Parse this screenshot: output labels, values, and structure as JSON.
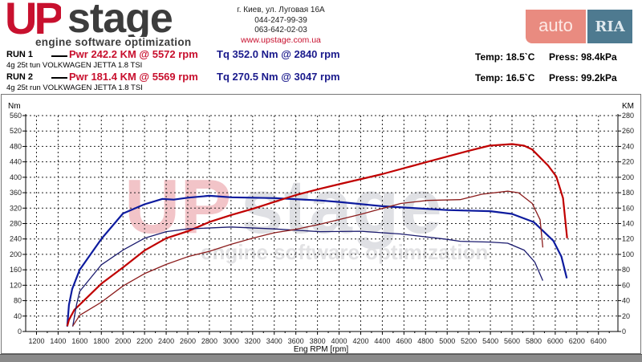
{
  "header": {
    "logo_main": "UPstage",
    "logo_tagline": "engine software optimization",
    "address": "г. Киев, ул. Луговая 16А",
    "phone1": "044-247-99-39",
    "phone2": "063-642-02-03",
    "website": "www.upstage.com.ua",
    "badge_left": "auto",
    "badge_right": "RIA"
  },
  "runs": [
    {
      "label": "RUN 1",
      "pwr": "Pwr  242.2 KM @ 5572 rpm",
      "tq": "Tq 352.0 Nm @ 2840 rpm",
      "car": "4g 25t tun VOLKWAGEN JETTA 1.8 TSI",
      "temp": "Temp: 18.5`C",
      "press": "Press: 98.4kPa"
    },
    {
      "label": "RUN 2",
      "pwr": "Pwr  181.4 KM @ 5569 rpm",
      "tq": "Tq 270.5 Nm @ 3047 rpm",
      "car": "4g 25t run VOLKWAGEN JETTA 1.8 TSI",
      "temp": "Temp: 16.5`C",
      "press": "Press: 99.2kPa"
    }
  ],
  "chart_data": {
    "type": "line",
    "title": "",
    "xlabel": "Eng RPM [rpm]",
    "ylabel": "Nm",
    "y2label": "KM",
    "xlim": [
      1100,
      6580
    ],
    "ylim": [
      0,
      560
    ],
    "y2lim": [
      0,
      280
    ],
    "xticks": [
      1200,
      1400,
      1600,
      1800,
      2000,
      2200,
      2400,
      2600,
      2800,
      3000,
      3200,
      3400,
      3600,
      3800,
      4000,
      4200,
      4400,
      4600,
      4800,
      5000,
      5200,
      5400,
      5600,
      5800,
      6000,
      6200,
      6400
    ],
    "yticks": [
      0,
      40,
      80,
      120,
      160,
      200,
      240,
      280,
      320,
      360,
      400,
      440,
      480,
      520,
      560
    ],
    "y2ticks": [
      0,
      20,
      40,
      60,
      80,
      100,
      120,
      140,
      160,
      180,
      200,
      220,
      240,
      260,
      280
    ],
    "grid": true,
    "watermark": "UPstage engine software optimization",
    "series": [
      {
        "name": "RUN 1 Torque",
        "axis": "left",
        "color": "#0d1b9e",
        "width": 2.2,
        "x": [
          1485,
          1500,
          1530,
          1600,
          1800,
          2000,
          2200,
          2365,
          2470,
          2600,
          2800,
          3000,
          3400,
          3820,
          4000,
          4400,
          5000,
          5400,
          5600,
          5800,
          5983,
          6057,
          6107
        ],
        "y": [
          13,
          69,
          110,
          160,
          240,
          306,
          330,
          344,
          342,
          347,
          352,
          348,
          346,
          340,
          336,
          325,
          315,
          312,
          305,
          284,
          235,
          194,
          138
        ]
      },
      {
        "name": "RUN 1 Power",
        "axis": "right",
        "color": "#c00000",
        "width": 2.2,
        "x": [
          1485,
          1500,
          1550,
          1800,
          2000,
          2200,
          2400,
          2600,
          2800,
          3000,
          3200,
          3400,
          3600,
          3820,
          4000,
          4396,
          4819,
          5191,
          5390,
          5600,
          5712,
          5787,
          5935,
          6010,
          6072,
          6110
        ],
        "y": [
          7,
          15,
          28,
          62,
          83,
          105,
          121,
          130,
          142,
          151,
          159,
          168,
          177,
          185,
          191,
          204,
          220,
          234,
          241,
          243,
          241,
          236,
          215,
          201,
          173,
          121
        ]
      },
      {
        "name": "RUN 2 Torque",
        "axis": "left",
        "color": "#1a1a6e",
        "width": 1.3,
        "x": [
          1535,
          1570,
          1600,
          1800,
          2000,
          2200,
          2400,
          2600,
          3000,
          3400,
          3820,
          4200,
          4570,
          5000,
          5120,
          5400,
          5560,
          5712,
          5811,
          5885
        ],
        "y": [
          13,
          69,
          104,
          173,
          211,
          242,
          259,
          266,
          271,
          266,
          259,
          260,
          253,
          239,
          234,
          232,
          229,
          211,
          180,
          132
        ]
      },
      {
        "name": "RUN 2 Power",
        "axis": "right",
        "color": "#8b1c1c",
        "width": 1.3,
        "x": [
          1535,
          1600,
          1800,
          2000,
          2200,
          2400,
          2600,
          2800,
          3000,
          3200,
          3400,
          3580,
          3820,
          4200,
          4570,
          4820,
          5120,
          5320,
          5560,
          5660,
          5787,
          5860,
          5885
        ],
        "y": [
          7,
          21,
          38,
          59,
          75,
          87,
          97,
          104,
          113,
          121,
          128,
          132,
          139,
          152,
          166,
          170,
          171,
          178,
          182,
          180,
          166,
          145,
          109
        ]
      }
    ]
  }
}
